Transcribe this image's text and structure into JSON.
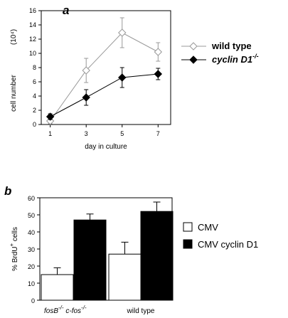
{
  "panels": {
    "a": "a",
    "b": "b"
  },
  "chart_data": [
    {
      "type": "line",
      "x": [
        1,
        3,
        5,
        7
      ],
      "xticks": [
        "1",
        "3",
        "5",
        "7"
      ],
      "xlabel": "day    in    culture",
      "ylabel": "cell    number",
      "ylabel_unit": "(10⁴)",
      "ylim": [
        0,
        16
      ],
      "yticks": [
        "0",
        "2",
        "4",
        "6",
        "8",
        "10",
        "12",
        "14",
        "16"
      ],
      "legend_position": "right",
      "series": [
        {
          "name": "wild  type",
          "values": [
            0.5,
            7.6,
            12.9,
            10.2
          ],
          "errors": [
            0.4,
            1.7,
            2.1,
            1.3
          ],
          "marker": "open-diamond",
          "color": "#999999"
        },
        {
          "name": "cyclin  D1",
          "name_sup": "-/-",
          "values": [
            1.1,
            3.8,
            6.6,
            7.1
          ],
          "errors": [
            0.4,
            1.1,
            1.4,
            0.8
          ],
          "marker": "filled-diamond",
          "color": "#000000"
        }
      ]
    },
    {
      "type": "bar",
      "ylabel": "%  BrdU",
      "ylabel_sup": "+",
      "ylabel_tail": " cells",
      "ylim": [
        0,
        60
      ],
      "yticks": [
        "0",
        "10",
        "20",
        "30",
        "40",
        "50",
        "60"
      ],
      "legend_position": "right",
      "groups": [
        {
          "label": "fosB",
          "label_sup": "-/-",
          "label2": "c-fos",
          "label2_sup": "-/-",
          "values": [
            15,
            47
          ],
          "errors": [
            4,
            3.5
          ]
        },
        {
          "label": "wild   type",
          "values": [
            27,
            52
          ],
          "errors": [
            7,
            5.5
          ]
        }
      ],
      "series": [
        {
          "name": "CMV",
          "color": "#ffffff"
        },
        {
          "name": "CMV cyclin D1",
          "color": "#000000"
        }
      ]
    }
  ]
}
